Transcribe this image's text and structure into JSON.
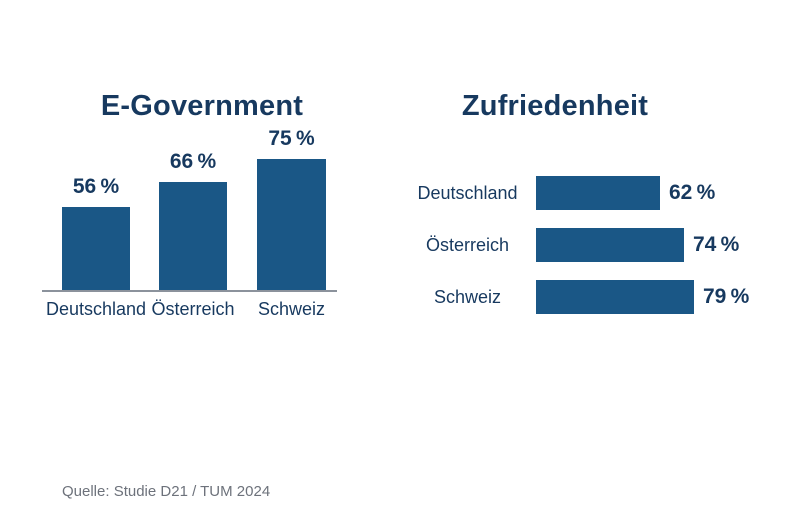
{
  "colors": {
    "background": "#ffffff",
    "bar": "#1a5786",
    "navy": "#17395f",
    "axis": "#8b929c",
    "source_text": "#6d727b"
  },
  "source": {
    "text": "Quelle: Studie D21 / TUM 2024"
  },
  "chart_data": [
    {
      "type": "bar",
      "orientation": "vertical",
      "title": "E-Government",
      "categories": [
        "Deutschland",
        "Österreich",
        "Schweiz"
      ],
      "values": [
        56,
        66,
        75
      ],
      "value_labels": [
        "56 %",
        "66 %",
        "75 %"
      ],
      "unit": "%",
      "ylim": [
        0,
        100
      ],
      "grid": false,
      "legend": false,
      "value_label_position": "above-bar",
      "category_label_position": "below-axis"
    },
    {
      "type": "bar",
      "orientation": "horizontal",
      "title": "Zufriedenheit",
      "categories": [
        "Deutschland",
        "Österreich",
        "Schweiz"
      ],
      "values": [
        62,
        74,
        79
      ],
      "value_labels": [
        "62 %",
        "74 %",
        "79 %"
      ],
      "unit": "%",
      "xlim": [
        0,
        100
      ],
      "grid": false,
      "legend": false,
      "value_label_position": "right-of-bar",
      "category_label_position": "left-of-bar"
    }
  ]
}
